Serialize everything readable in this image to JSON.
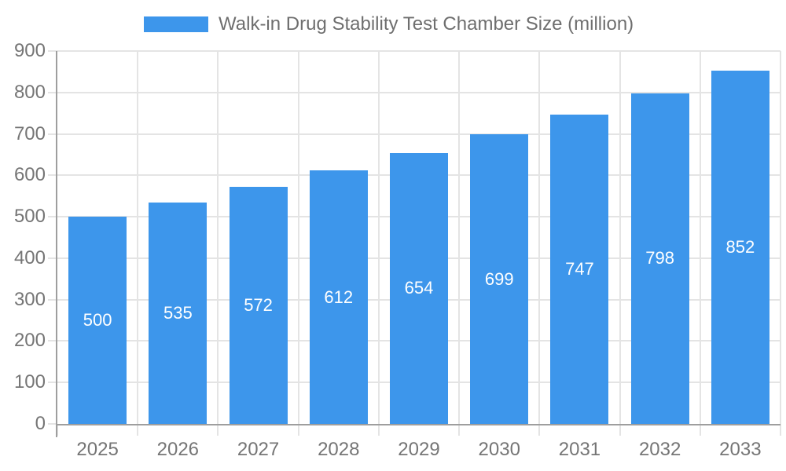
{
  "legend": {
    "label": "Walk-in Drug Stability Test Chamber Size (million)"
  },
  "chart_data": {
    "type": "bar",
    "title": "Walk-in Drug Stability Test Chamber Size (million)",
    "categories": [
      "2025",
      "2026",
      "2027",
      "2028",
      "2029",
      "2030",
      "2031",
      "2032",
      "2033"
    ],
    "values": [
      500,
      535,
      572,
      612,
      654,
      699,
      747,
      798,
      852
    ],
    "xlabel": "",
    "ylabel": "",
    "ylim": [
      0,
      900
    ],
    "ytick_step": 100,
    "grid": true,
    "legend_position": "top-center",
    "value_labels": "inside-middle",
    "colors": {
      "bar": "#3D96EB",
      "grid": "#E4E4E4",
      "axis": "#9E9E9E",
      "tick_label": "#757575",
      "legend_text": "#6E6E6E",
      "value_label": "#FFFFFF",
      "background": "#FFFFFF"
    }
  }
}
